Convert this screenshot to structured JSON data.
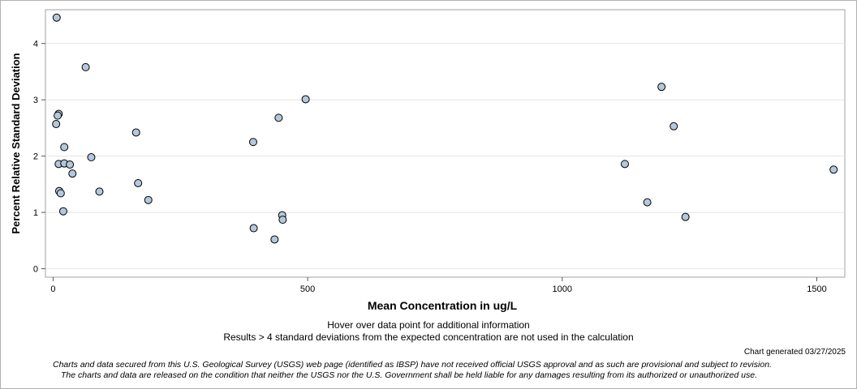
{
  "chart_data": {
    "type": "scatter",
    "title": "",
    "xlabel": "Mean Concentration in ug/L",
    "ylabel": "Percent Relative Standard Deviation",
    "xlim": [
      -15,
      1555
    ],
    "ylim": [
      -0.15,
      4.6
    ],
    "xticks": [
      0,
      500,
      1000,
      1500
    ],
    "yticks": [
      0,
      1,
      2,
      3,
      4
    ],
    "xtick_labels": [
      "0",
      "500",
      "1000",
      "1500"
    ],
    "ytick_labels": [
      "0",
      "1",
      "2",
      "3",
      "4"
    ],
    "grid": "horizontal",
    "marker_fill": "#b4c8dc",
    "marker_edge": "#000000",
    "points": [
      {
        "x": 7,
        "y": 4.46
      },
      {
        "x": 64,
        "y": 3.58
      },
      {
        "x": 11,
        "y": 2.75
      },
      {
        "x": 9,
        "y": 2.72
      },
      {
        "x": 6,
        "y": 2.57
      },
      {
        "x": 22,
        "y": 2.16
      },
      {
        "x": 75,
        "y": 1.98
      },
      {
        "x": 11,
        "y": 1.86
      },
      {
        "x": 22,
        "y": 1.87
      },
      {
        "x": 33,
        "y": 1.85
      },
      {
        "x": 38,
        "y": 1.69
      },
      {
        "x": 12,
        "y": 1.38
      },
      {
        "x": 15,
        "y": 1.34
      },
      {
        "x": 91,
        "y": 1.37
      },
      {
        "x": 20,
        "y": 1.02
      },
      {
        "x": 163,
        "y": 2.42
      },
      {
        "x": 167,
        "y": 1.52
      },
      {
        "x": 187,
        "y": 1.22
      },
      {
        "x": 393,
        "y": 2.25
      },
      {
        "x": 394,
        "y": 0.72
      },
      {
        "x": 443,
        "y": 2.68
      },
      {
        "x": 496,
        "y": 3.01
      },
      {
        "x": 450,
        "y": 0.95
      },
      {
        "x": 451,
        "y": 0.87
      },
      {
        "x": 435,
        "y": 0.52
      },
      {
        "x": 1123,
        "y": 1.86
      },
      {
        "x": 1195,
        "y": 3.23
      },
      {
        "x": 1167,
        "y": 1.18
      },
      {
        "x": 1219,
        "y": 2.53
      },
      {
        "x": 1242,
        "y": 0.92
      },
      {
        "x": 1533,
        "y": 1.76
      }
    ]
  },
  "notes": {
    "hover": "Hover over data point for additional information",
    "results": "Results > 4 standard deviations from the expected concentration are not used in the calculation",
    "generated": "Chart generated 03/27/2025",
    "disclaimer_1": "Charts and data secured from this U.S. Geological Survey (USGS) web page (identified as IBSP) have not received official USGS approval and as such are provisional and subject to revision.",
    "disclaimer_2": "The charts and data are released on the condition that neither the USGS nor the U.S. Government shall be held liable for any damages resulting from its authorized or unauthorized use."
  }
}
